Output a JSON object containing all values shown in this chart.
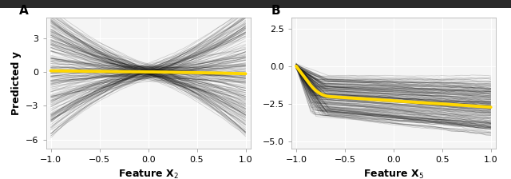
{
  "n_lines": 200,
  "n_points": 80,
  "seed": 7,
  "panel_A": {
    "xlabel": "Feature X$_2$",
    "ylabel": "Predicted y",
    "label": "A",
    "xlim": [
      -1.05,
      1.05
    ],
    "ylim": [
      -6.8,
      4.8
    ],
    "yticks": [
      -6,
      -3,
      0,
      3
    ],
    "xticks": [
      -1.0,
      -0.5,
      0.0,
      0.5,
      1.0
    ]
  },
  "panel_B": {
    "xlabel": "Feature X$_5$",
    "label": "B",
    "xlim": [
      -1.05,
      1.05
    ],
    "ylim": [
      -5.5,
      3.2
    ],
    "yticks": [
      -5.0,
      -2.5,
      0.0,
      2.5
    ],
    "xticks": [
      -1.0,
      -0.5,
      0.0,
      0.5,
      1.0
    ]
  },
  "line_color": "#1a1a1a",
  "line_alpha": 0.18,
  "line_lw": 0.6,
  "mean_color": "#FFD700",
  "mean_lw": 2.8,
  "background_color": "#ffffff",
  "plot_bg_color": "#f5f5f5",
  "grid_color": "#ffffff",
  "top_bar_color": "#2a2a2a",
  "label_fontsize": 9,
  "tick_fontsize": 8,
  "panel_label_fontsize": 11
}
